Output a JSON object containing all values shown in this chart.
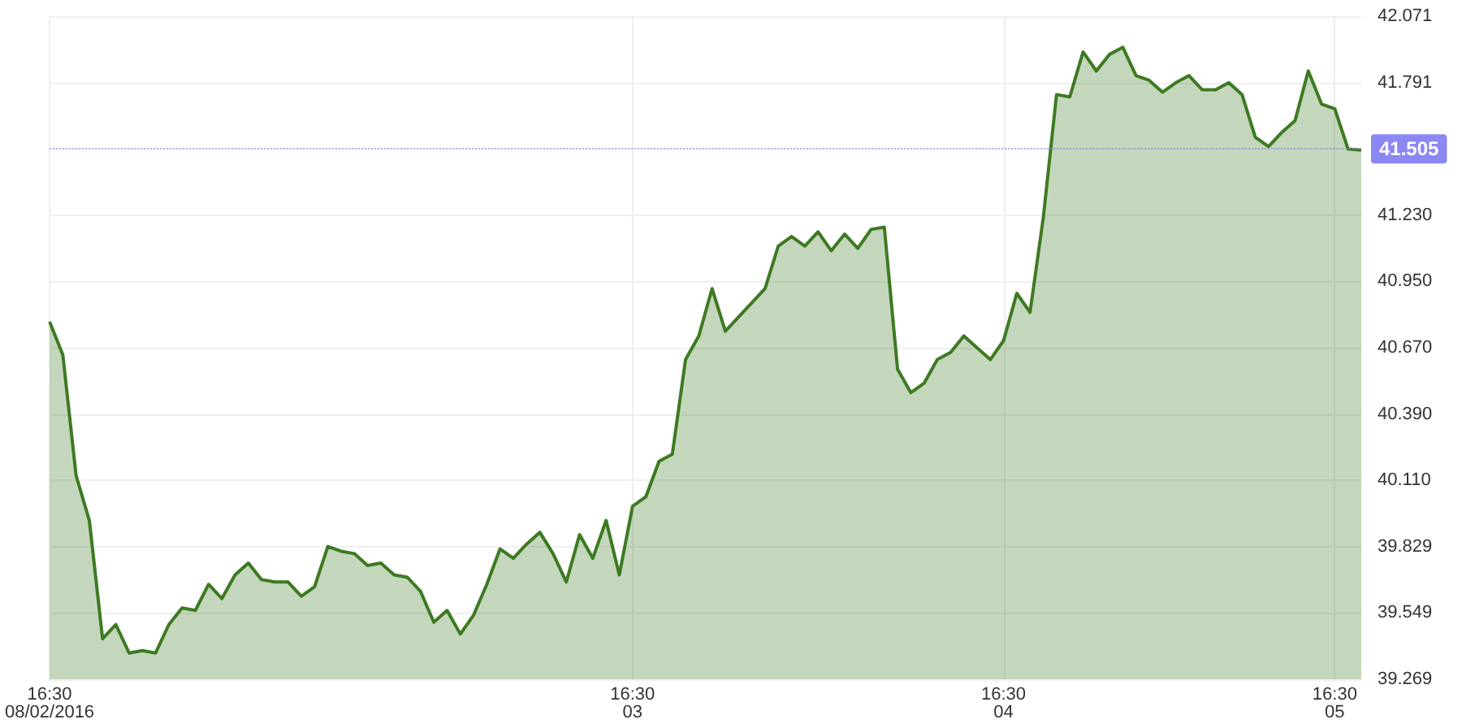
{
  "chart_data": {
    "type": "area",
    "categories": [
      "16:30\n08/02/2016",
      null,
      null,
      null,
      null,
      null,
      null,
      null,
      null,
      null,
      null,
      null,
      null,
      null,
      null,
      null,
      null,
      null,
      null,
      null,
      null,
      null,
      null,
      null,
      null,
      null,
      null,
      null,
      null,
      null,
      null,
      null,
      null,
      null,
      null,
      null,
      null,
      null,
      null,
      null,
      null,
      null,
      null,
      null,
      "16:30\n03",
      null,
      null,
      null,
      null,
      null,
      null,
      null,
      null,
      null,
      null,
      null,
      null,
      null,
      null,
      null,
      null,
      null,
      null,
      null,
      null,
      null,
      null,
      null,
      null,
      null,
      null,
      null,
      "16:30\n04",
      null,
      null,
      null,
      null,
      null,
      null,
      null,
      null,
      null,
      null,
      null,
      null,
      null,
      null,
      null,
      null,
      null,
      null,
      null,
      null,
      null,
      null,
      null,
      null,
      "16:30\n05",
      null,
      null
    ],
    "series": [
      {
        "color": "#3d7a22",
        "values": [
          40.78,
          40.64,
          40.13,
          39.94,
          39.44,
          39.5,
          39.38,
          39.39,
          39.38,
          39.5,
          39.57,
          39.56,
          39.67,
          39.61,
          39.71,
          39.76,
          39.69,
          39.68,
          39.68,
          39.62,
          39.66,
          39.83,
          39.81,
          39.8,
          39.75,
          39.76,
          39.71,
          39.7,
          39.64,
          39.51,
          39.56,
          39.46,
          39.54,
          39.67,
          39.82,
          39.78,
          39.84,
          39.89,
          39.8,
          39.68,
          39.88,
          39.78,
          39.94,
          39.71,
          40.0,
          40.04,
          40.19,
          40.22,
          40.62,
          40.72,
          40.92,
          40.74,
          40.8,
          40.86,
          40.92,
          41.1,
          41.14,
          41.1,
          41.16,
          41.08,
          41.15,
          41.09,
          41.17,
          41.18,
          40.58,
          40.48,
          40.52,
          40.62,
          40.65,
          40.72,
          40.67,
          40.62,
          40.7,
          40.9,
          40.82,
          41.22,
          41.74,
          41.73,
          41.92,
          41.84,
          41.91,
          41.94,
          41.82,
          41.8,
          41.75,
          41.79,
          41.82,
          41.76,
          41.76,
          41.79,
          41.74,
          41.56,
          41.52,
          41.58,
          41.63,
          41.84,
          41.7,
          41.68,
          41.51,
          41.505
        ]
      }
    ],
    "ylim": [
      39.269,
      42.071
    ],
    "yticks": [
      39.269,
      39.549,
      39.829,
      {
        "value": 40.11,
        "label": "40.110"
      },
      {
        "value": 40.39,
        "label": "40.390"
      },
      {
        "value": 40.67,
        "label": "40.670"
      },
      {
        "value": 40.95,
        "label": "40.950"
      },
      {
        "value": 41.23,
        "label": "41.230"
      },
      {
        "value": 41.511,
        "label": null
      },
      41.791,
      42.071
    ],
    "ref_lines": [
      {
        "axis": "y",
        "value": 41.505,
        "label": "41.505",
        "color": "#8b87f5"
      }
    ],
    "grid": true,
    "marker": "none",
    "line_style": "solid"
  }
}
